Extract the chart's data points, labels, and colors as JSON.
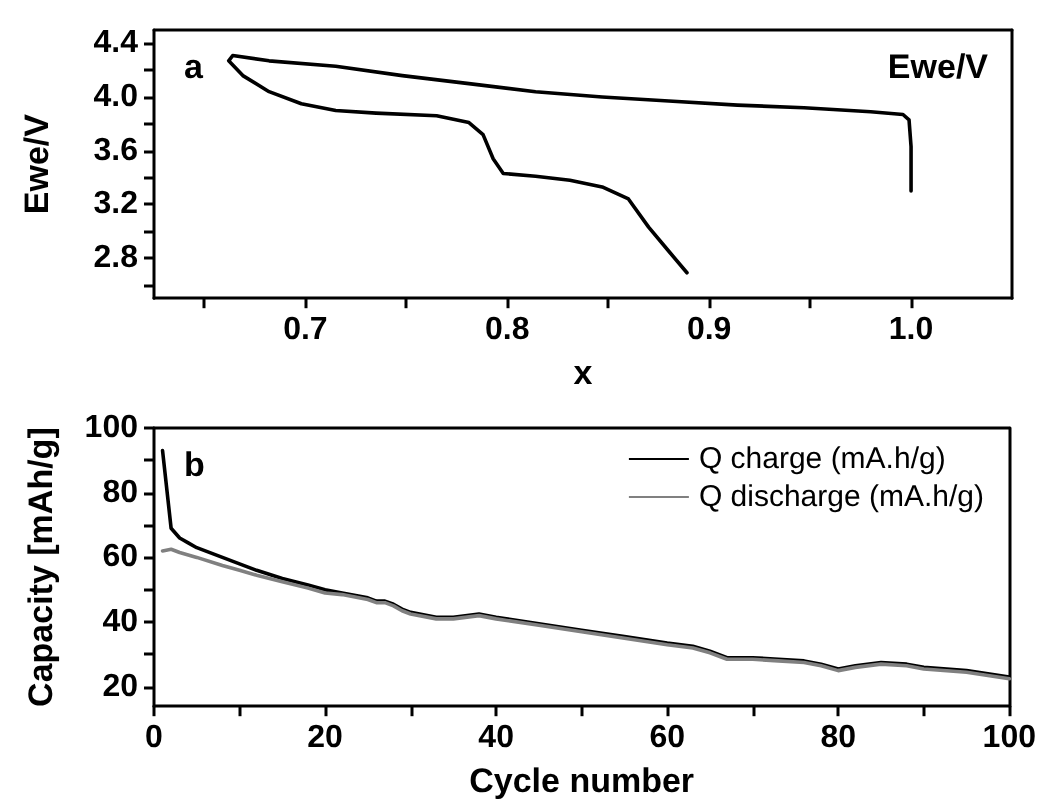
{
  "chart_data": [
    {
      "type": "line",
      "xlabel": "x",
      "ylabel": "Ewe/V",
      "annotations": [
        "a",
        "Ewe/V"
      ],
      "marker": "none",
      "line_style": "solid",
      "grid": false,
      "legend": false,
      "xlim": [
        0.625,
        1.05
      ],
      "ylim": [
        2.5,
        4.5
      ],
      "xticks": [
        {
          "value": 0.65,
          "label": null
        },
        0.7,
        {
          "value": 0.75,
          "label": null
        },
        0.8,
        {
          "value": 0.85,
          "label": null
        },
        0.9,
        {
          "value": 0.95,
          "label": null
        },
        {
          "value": 1.0,
          "label": "1.0"
        }
      ],
      "yticks": [
        {
          "value": 2.6,
          "label": null
        },
        2.8,
        {
          "value": 3.0,
          "label": null
        },
        3.2,
        {
          "value": 3.4,
          "label": null
        },
        3.6,
        {
          "value": 3.8,
          "label": null
        },
        {
          "value": 4.0,
          "label": "4.0"
        },
        {
          "value": 4.2,
          "label": null
        },
        4.4
      ],
      "series": [
        {
          "color": "#000000",
          "x": [
            1.0,
            1.0,
            0.999,
            0.996,
            0.98,
            0.947,
            0.914,
            0.88,
            0.847,
            0.814,
            0.781,
            0.748,
            0.715,
            0.682,
            0.664,
            0.662,
            0.669,
            0.682,
            0.698,
            0.715,
            0.735,
            0.765,
            0.781,
            0.788,
            0.793,
            0.798,
            0.814,
            0.831,
            0.847,
            0.86,
            0.87,
            0.88,
            0.889
          ],
          "values": [
            3.3,
            3.63,
            3.83,
            3.87,
            3.89,
            3.92,
            3.94,
            3.97,
            4.0,
            4.04,
            4.1,
            4.16,
            4.23,
            4.27,
            4.31,
            4.27,
            4.16,
            4.04,
            3.95,
            3.9,
            3.88,
            3.86,
            3.81,
            3.72,
            3.54,
            3.43,
            3.41,
            3.38,
            3.33,
            3.24,
            3.03,
            2.85,
            2.69
          ]
        }
      ]
    },
    {
      "type": "line",
      "xlabel": "Cycle number",
      "ylabel": "Capacity [mAh/g]",
      "annotations": [
        "b"
      ],
      "marker": "none",
      "line_style": "solid",
      "grid": false,
      "legend": "top right",
      "xlim": [
        0,
        100
      ],
      "ylim": [
        14,
        100
      ],
      "xticks": [
        0,
        {
          "value": 10,
          "label": null
        },
        20,
        {
          "value": 30,
          "label": null
        },
        40,
        {
          "value": 50,
          "label": null
        },
        60,
        {
          "value": 70,
          "label": null
        },
        80,
        {
          "value": 90,
          "label": null
        },
        100
      ],
      "yticks": [
        20,
        {
          "value": 30,
          "label": null
        },
        40,
        {
          "value": 50,
          "label": null
        },
        60,
        {
          "value": 70,
          "label": null
        },
        80,
        {
          "value": 90,
          "label": null
        },
        100
      ],
      "series": [
        {
          "name": "Q charge (mA.h/g)",
          "color": "#000000",
          "x": [
            1,
            2,
            3,
            4,
            5,
            6,
            8,
            10,
            12,
            15,
            18,
            20,
            22,
            25,
            26,
            27,
            28,
            29,
            30,
            33,
            35,
            38,
            40,
            45,
            50,
            55,
            60,
            63,
            65,
            67,
            70,
            73,
            76,
            78,
            80,
            82,
            85,
            88,
            90,
            95,
            100
          ],
          "values": [
            93,
            69,
            66,
            64.5,
            63,
            62,
            60,
            58,
            56,
            53.5,
            51.5,
            50,
            49,
            47.5,
            46.5,
            46.5,
            45.5,
            44,
            43,
            41.5,
            41.5,
            42.5,
            41.5,
            39.5,
            37.5,
            35.5,
            33.5,
            32.5,
            31,
            29,
            29,
            28.5,
            28,
            27,
            25.5,
            26.5,
            27.5,
            27,
            26,
            25,
            23
          ]
        },
        {
          "name": "Q discharge (mA.h/g)",
          "color": "#808080",
          "x": [
            1,
            2,
            3,
            5,
            8,
            10,
            12,
            15,
            18,
            20,
            22,
            25,
            26,
            27,
            28,
            29,
            30,
            33,
            35,
            38,
            40,
            45,
            50,
            55,
            60,
            63,
            65,
            67,
            70,
            73,
            76,
            78,
            80,
            82,
            85,
            88,
            90,
            95,
            100
          ],
          "values": [
            62,
            62.5,
            61.5,
            60,
            57.5,
            56,
            54.5,
            52.5,
            50.5,
            49,
            48.5,
            47,
            46,
            46,
            45,
            43.5,
            42.5,
            41,
            41,
            42,
            41,
            39,
            37,
            35,
            33,
            32,
            30.5,
            28.5,
            28.5,
            28,
            27.5,
            26.5,
            25,
            26,
            27,
            26.5,
            25.5,
            24.5,
            22.5
          ]
        }
      ]
    }
  ]
}
